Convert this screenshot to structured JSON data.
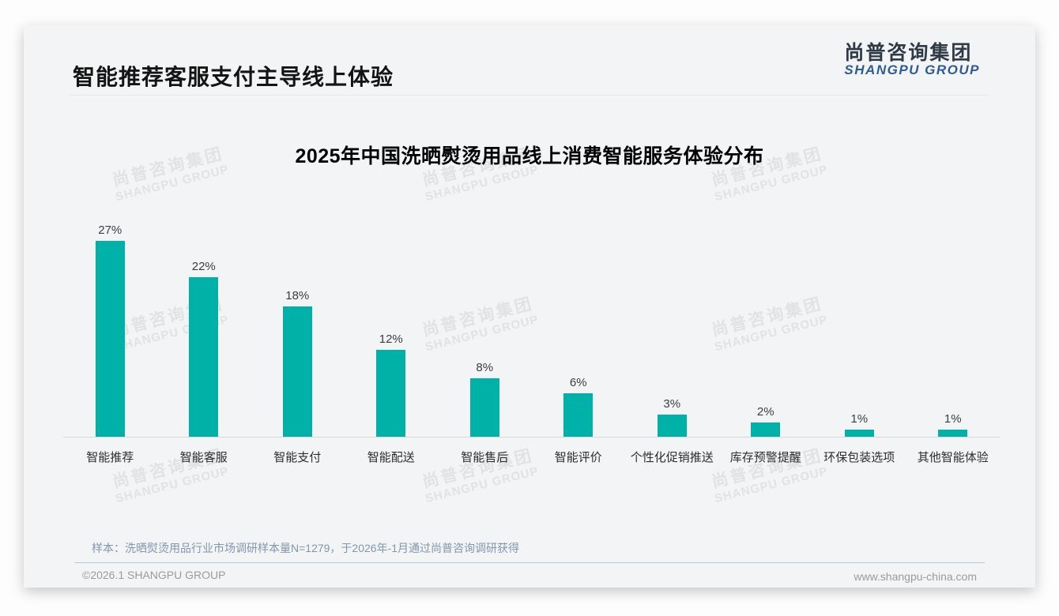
{
  "page": {
    "title": "智能推荐客服支付主导线上体验",
    "logo": {
      "cn": "尚普咨询集团",
      "en": "SHANGPU GROUP"
    },
    "watermark": {
      "cn": "尚普咨询集团",
      "en": "SHANGPU GROUP"
    },
    "footer": {
      "sample_note": "样本：洗晒熨烫用品行业市场调研样本量N=1279，于2026年-1月通过尚普咨询调研获得",
      "copyright": "©2026.1 SHANGPU GROUP",
      "website": "www.shangpu-china.com"
    }
  },
  "colors": {
    "bar": "#00b1a8",
    "card_background": "#f3f4f5",
    "logo_blue": "#2f5b94",
    "note_text": "#8296ac"
  },
  "chart_data": {
    "type": "bar",
    "title": "2025年中国洗晒熨烫用品线上消费智能服务体验分布",
    "categories": [
      "智能推荐",
      "智能客服",
      "智能支付",
      "智能配送",
      "智能售后",
      "智能评价",
      "个性化促销推送",
      "库存预警提醒",
      "环保包装选项",
      "其他智能体验"
    ],
    "values": [
      27,
      22,
      18,
      12,
      8,
      6,
      3,
      2,
      1,
      1
    ],
    "value_labels": [
      "27%",
      "22%",
      "18%",
      "12%",
      "8%",
      "6%",
      "3%",
      "2%",
      "1%",
      "1%"
    ],
    "unit": "%",
    "xlabel": "",
    "ylabel": "",
    "ylim": [
      0,
      29
    ],
    "grid": false,
    "legend": false,
    "bar_color": "#00b1a8"
  }
}
